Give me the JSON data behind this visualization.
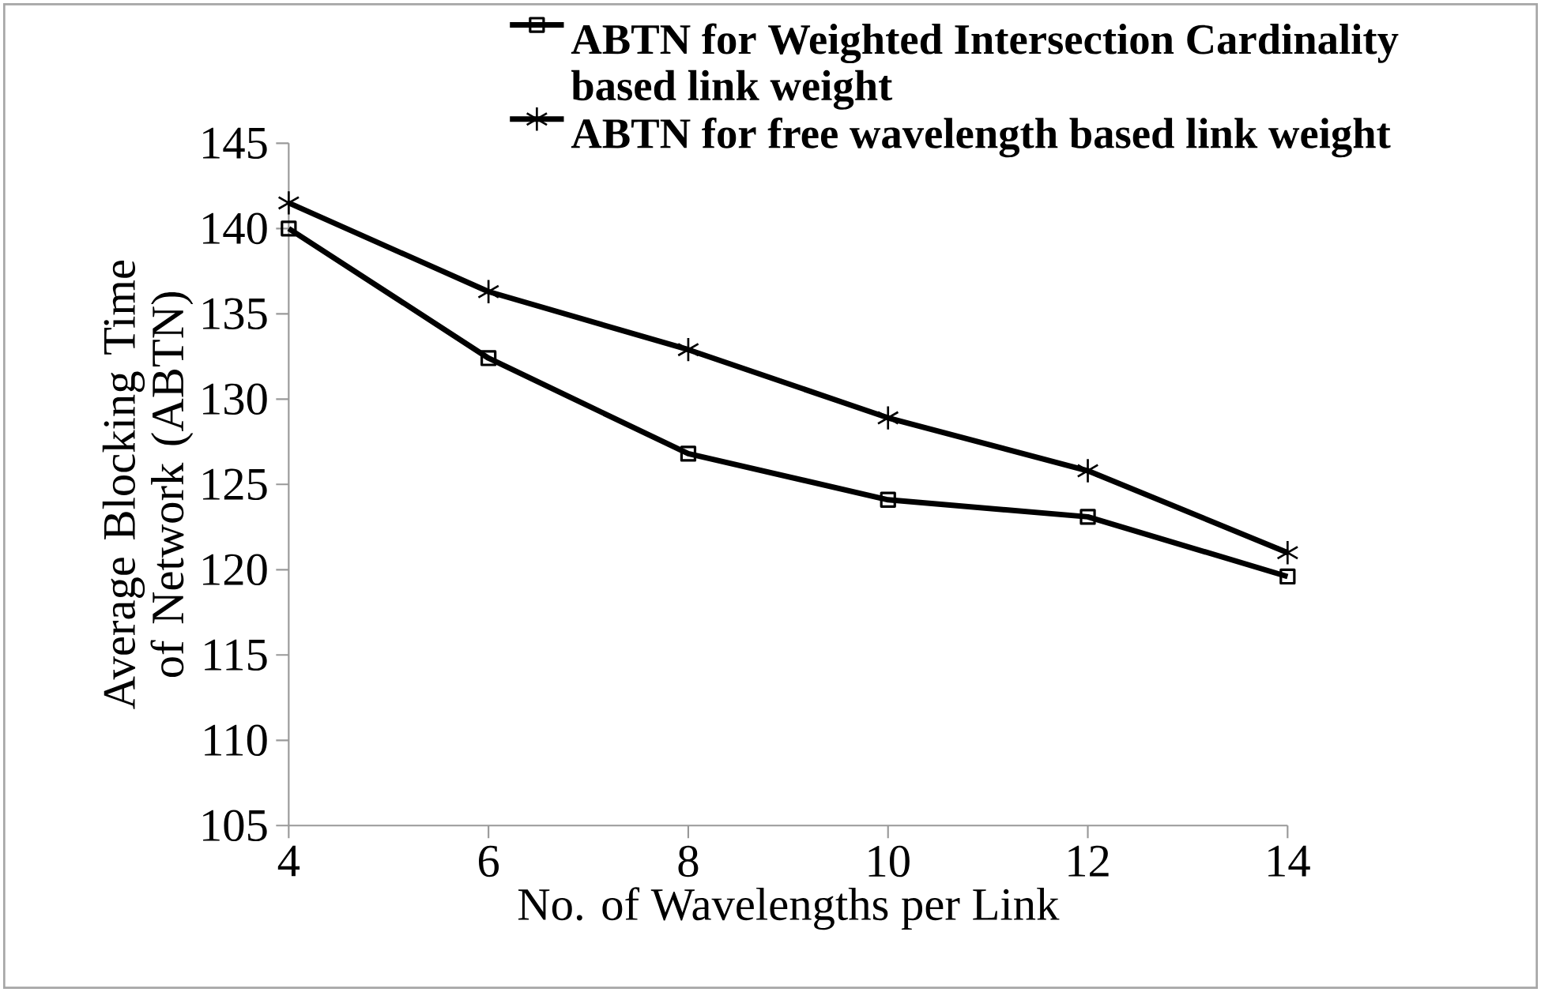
{
  "chart_data": {
    "type": "line",
    "xlabel": "No. of Wavelengths per Link",
    "ylabel": "Average Blocking Time of Network (ABTN)",
    "x": [
      4,
      6,
      8,
      10,
      12,
      14
    ],
    "series": [
      {
        "name": "ABTN for Weighted Intersection Cardinality based link weight",
        "color": "#000000",
        "marker": "square",
        "values": [
          140.0,
          132.4,
          126.8,
          124.1,
          123.1,
          119.6
        ]
      },
      {
        "name": "ABTN for free wavelength based link weight",
        "color": "#000000",
        "marker": "cross",
        "values": [
          141.5,
          136.3,
          132.9,
          128.9,
          125.8,
          121.0
        ]
      }
    ],
    "xlim": [
      4,
      14
    ],
    "xticks": [
      4,
      6,
      8,
      10,
      12,
      14
    ],
    "ylim": [
      105,
      145
    ],
    "yticks": [
      105,
      110,
      115,
      120,
      125,
      130,
      135,
      140,
      145
    ],
    "grid": false,
    "legend": "top right",
    "line_style": "solid"
  }
}
